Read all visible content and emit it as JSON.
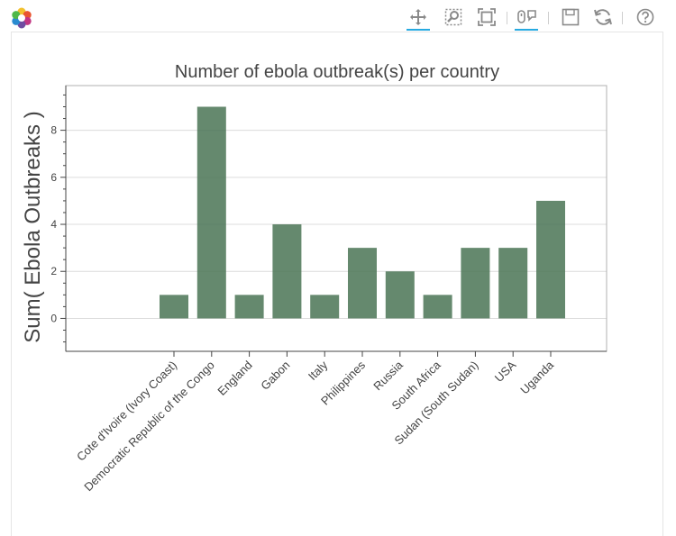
{
  "toolbar": {
    "tools": [
      {
        "name": "pan-tool",
        "icon": "pan-icon",
        "active": true
      },
      {
        "name": "box-zoom-tool",
        "icon": "box-zoom-icon",
        "active": false
      },
      {
        "name": "resize-tool",
        "icon": "resize-icon",
        "active": false
      },
      {
        "name": "hover-tool",
        "icon": "hover-icon",
        "active": true
      },
      {
        "name": "save-tool",
        "icon": "save-icon",
        "active": false
      },
      {
        "name": "reset-tool",
        "icon": "reset-icon",
        "active": false
      },
      {
        "name": "help-tool",
        "icon": "help-icon",
        "active": false
      }
    ],
    "accent_color": "#26aae1"
  },
  "chart_data": {
    "type": "bar",
    "title": "Number of ebola outbreak(s) per country",
    "ylabel": "Sum( Ebola Outbreaks )",
    "xlabel": "",
    "categories": [
      "Cote d'Ivoire (Ivory Coast)",
      "Democratic Republic of the Congo",
      "England",
      "Gabon",
      "Italy",
      "Philippines",
      "Russia",
      "South Africa",
      "Sudan (South Sudan)",
      "USA",
      "Uganda"
    ],
    "values": [
      1,
      9,
      1,
      4,
      1,
      3,
      2,
      1,
      3,
      3,
      5
    ],
    "y_ticks": [
      "0",
      "2",
      "4",
      "6",
      "8"
    ],
    "ylim": [
      -1.4,
      9.9
    ],
    "bar_color": "#4a7455",
    "grid": true,
    "legend": "none"
  }
}
